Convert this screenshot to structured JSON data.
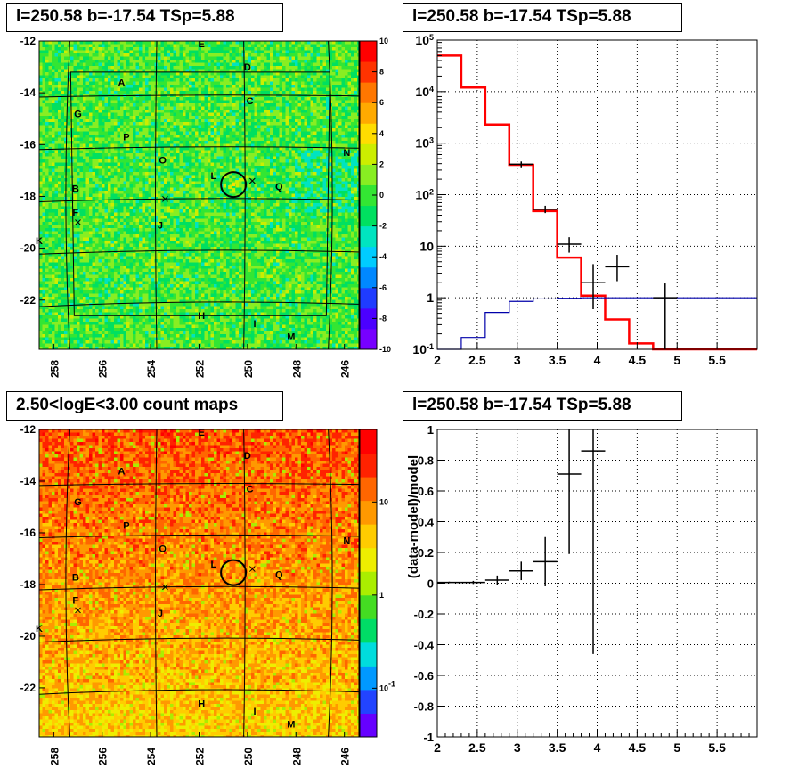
{
  "panels": {
    "tl_title": "l=250.58 b=-17.54 TSp=5.88",
    "tr_title": "l=250.58 b=-17.54 TSp=5.88",
    "bl_title": "2.50<logE<3.00 count maps",
    "br_title": "l=250.58 b=-17.54 TSp=5.88"
  },
  "chart_data": [
    {
      "type": "heatmap",
      "panel": "top-left",
      "title": "l=250.58 b=-17.54 TSp=5.88",
      "xlim": [
        258.6,
        245.4
      ],
      "ylim": [
        -23.9,
        -12
      ],
      "x_ticks": [
        "258",
        "256",
        "254",
        "252",
        "250",
        "248",
        "246"
      ],
      "x_tick_values": [
        258,
        256,
        254,
        252,
        250,
        248,
        246
      ],
      "y_ticks": [
        "-12",
        "-14",
        "-16",
        "-18",
        "-20",
        "-22"
      ],
      "y_tick_values": [
        -12,
        -14,
        -16,
        -18,
        -20,
        -22
      ],
      "colorbar": {
        "scale": "linear",
        "range": [
          -10,
          10
        ],
        "ticks": [
          "10",
          "8",
          "6",
          "4",
          "2",
          "0",
          "-2",
          "-4",
          "-6",
          "-8",
          "-10"
        ],
        "tick_values": [
          10,
          8,
          6,
          4,
          2,
          0,
          -2,
          -4,
          -6,
          -8,
          -10
        ]
      },
      "grid": true,
      "sources": [
        {
          "label": "A",
          "l": 255.2,
          "b": -13.6
        },
        {
          "label": "B",
          "l": 257.1,
          "b": -17.7
        },
        {
          "label": "C",
          "l": 249.9,
          "b": -14.3
        },
        {
          "label": "D",
          "l": 250.0,
          "b": -13.0
        },
        {
          "label": "E",
          "l": 251.9,
          "b": -12.1
        },
        {
          "label": "F",
          "l": 257.1,
          "b": -18.6
        },
        {
          "label": "G",
          "l": 257.0,
          "b": -14.8
        },
        {
          "label": "H",
          "l": 251.9,
          "b": -22.6
        },
        {
          "label": "I",
          "l": 249.7,
          "b": -22.9
        },
        {
          "label": "J",
          "l": 253.6,
          "b": -19.1
        },
        {
          "label": "K",
          "l": 258.6,
          "b": -19.7
        },
        {
          "label": "L",
          "l": 251.4,
          "b": -17.2
        },
        {
          "label": "M",
          "l": 248.2,
          "b": -23.4
        },
        {
          "label": "N",
          "l": 245.9,
          "b": -16.3
        },
        {
          "label": "O",
          "l": 253.5,
          "b": -16.6
        },
        {
          "label": "P",
          "l": 255.0,
          "b": -15.7
        },
        {
          "label": "Q",
          "l": 248.7,
          "b": -17.6
        }
      ],
      "markers": [
        {
          "symbol": "x",
          "l": 257.0,
          "b": -19.0
        },
        {
          "symbol": "x",
          "l": 253.4,
          "b": -18.1
        },
        {
          "symbol": "x",
          "l": 249.8,
          "b": -17.4
        }
      ],
      "circle": {
        "l": 250.58,
        "b": -17.54,
        "radius_deg": 0.5
      }
    },
    {
      "type": "line",
      "panel": "top-right",
      "title": "l=250.58 b=-17.54 TSp=5.88",
      "xlim": [
        2,
        6
      ],
      "ylim": [
        0.1,
        100000
      ],
      "y_scale": "log",
      "x_ticks": [
        "2",
        "2.5",
        "3",
        "3.5",
        "4",
        "4.5",
        "5",
        "5.5"
      ],
      "x_tick_values": [
        2,
        2.5,
        3,
        3.5,
        4,
        4.5,
        5,
        5.5
      ],
      "y_ticks": [
        "10^-1",
        "1",
        "10",
        "10^2",
        "10^3",
        "10^4",
        "10^5"
      ],
      "y_tick_values": [
        0.1,
        1,
        10,
        100,
        1000,
        10000,
        100000
      ],
      "grid": true,
      "bin_edges": [
        2.0,
        2.3,
        2.6,
        2.9,
        3.2,
        3.5,
        3.8,
        4.1,
        4.4,
        4.7,
        5.0,
        5.3,
        5.6,
        6.0
      ],
      "series": [
        {
          "style": "step",
          "color": "#ff0000",
          "values": [
            50000,
            12000,
            2300,
            380,
            48,
            6,
            1.1,
            0.38,
            0.13,
            0.095,
            0.095,
            0.095,
            0.095
          ]
        },
        {
          "style": "step",
          "color": "#0000aa",
          "values": [
            0.1,
            0.17,
            0.52,
            0.85,
            0.95,
            0.98,
            1.0,
            1.0,
            1.0,
            1.0,
            1.0,
            1.0,
            1.0
          ]
        },
        {
          "style": "errorbar",
          "color": "#000000",
          "points": [
            {
              "x": 3.05,
              "y": 390,
              "xerr": 0.15,
              "ylo": 340,
              "yhi": 440
            },
            {
              "x": 3.35,
              "y": 52,
              "xerr": 0.15,
              "ylo": 44,
              "yhi": 61
            },
            {
              "x": 3.65,
              "y": 11,
              "xerr": 0.15,
              "ylo": 7.5,
              "yhi": 15
            },
            {
              "x": 3.95,
              "y": 2,
              "xerr": 0.15,
              "ylo": 0.6,
              "yhi": 4.5
            },
            {
              "x": 4.25,
              "y": 4,
              "xerr": 0.15,
              "ylo": 2.1,
              "yhi": 6.8
            },
            {
              "x": 4.85,
              "y": 1,
              "xerr": 0.15,
              "ylo": 0.1,
              "yhi": 1.9
            }
          ]
        }
      ]
    },
    {
      "type": "heatmap",
      "panel": "bottom-left",
      "title": "2.50<logE<3.00 count maps",
      "xlim": [
        258.6,
        245.4
      ],
      "ylim": [
        -23.9,
        -12
      ],
      "x_ticks": [
        "258",
        "256",
        "254",
        "252",
        "250",
        "248",
        "246"
      ],
      "x_tick_values": [
        258,
        256,
        254,
        252,
        250,
        248,
        246
      ],
      "y_ticks": [
        "-12",
        "-14",
        "-16",
        "-18",
        "-20",
        "-22"
      ],
      "y_tick_values": [
        -12,
        -14,
        -16,
        -18,
        -20,
        -22
      ],
      "colorbar": {
        "scale": "log",
        "range": [
          0.03,
          60
        ],
        "ticks": [
          "10",
          "1",
          "10^-1"
        ],
        "tick_values": [
          10,
          1,
          0.1
        ]
      },
      "grid": true
    },
    {
      "type": "scatter",
      "panel": "bottom-right",
      "title": "l=250.58 b=-17.54 TSp=5.88",
      "ylabel": "(data-model)/model",
      "xlim": [
        2,
        6
      ],
      "ylim": [
        -1,
        1
      ],
      "x_ticks": [
        "2",
        "2.5",
        "3",
        "3.5",
        "4",
        "4.5",
        "5",
        "5.5"
      ],
      "x_tick_values": [
        2,
        2.5,
        3,
        3.5,
        4,
        4.5,
        5,
        5.5
      ],
      "y_ticks": [
        "-1",
        "-0.8",
        "-0.6",
        "-0.4",
        "-0.2",
        "0",
        "0.2",
        "0.4",
        "0.6",
        "0.8",
        "1"
      ],
      "y_tick_values": [
        -1,
        -0.8,
        -0.6,
        -0.4,
        -0.2,
        0,
        0.2,
        0.4,
        0.6,
        0.8,
        1
      ],
      "grid": true,
      "points": [
        {
          "x": 2.15,
          "y": 0.005,
          "xerr": 0.15,
          "ylo": 0.0,
          "yhi": 0.01
        },
        {
          "x": 2.45,
          "y": 0.005,
          "xerr": 0.15,
          "ylo": -0.005,
          "yhi": 0.015
        },
        {
          "x": 2.75,
          "y": 0.02,
          "xerr": 0.15,
          "ylo": -0.01,
          "yhi": 0.05
        },
        {
          "x": 3.05,
          "y": 0.08,
          "xerr": 0.15,
          "ylo": 0.02,
          "yhi": 0.14
        },
        {
          "x": 3.35,
          "y": 0.14,
          "xerr": 0.15,
          "ylo": -0.02,
          "yhi": 0.3
        },
        {
          "x": 3.65,
          "y": 0.71,
          "xerr": 0.15,
          "ylo": 0.19,
          "yhi": 1.25
        },
        {
          "x": 3.95,
          "y": 0.86,
          "xerr": 0.15,
          "ylo": -0.46,
          "yhi": 2.2
        }
      ]
    }
  ]
}
